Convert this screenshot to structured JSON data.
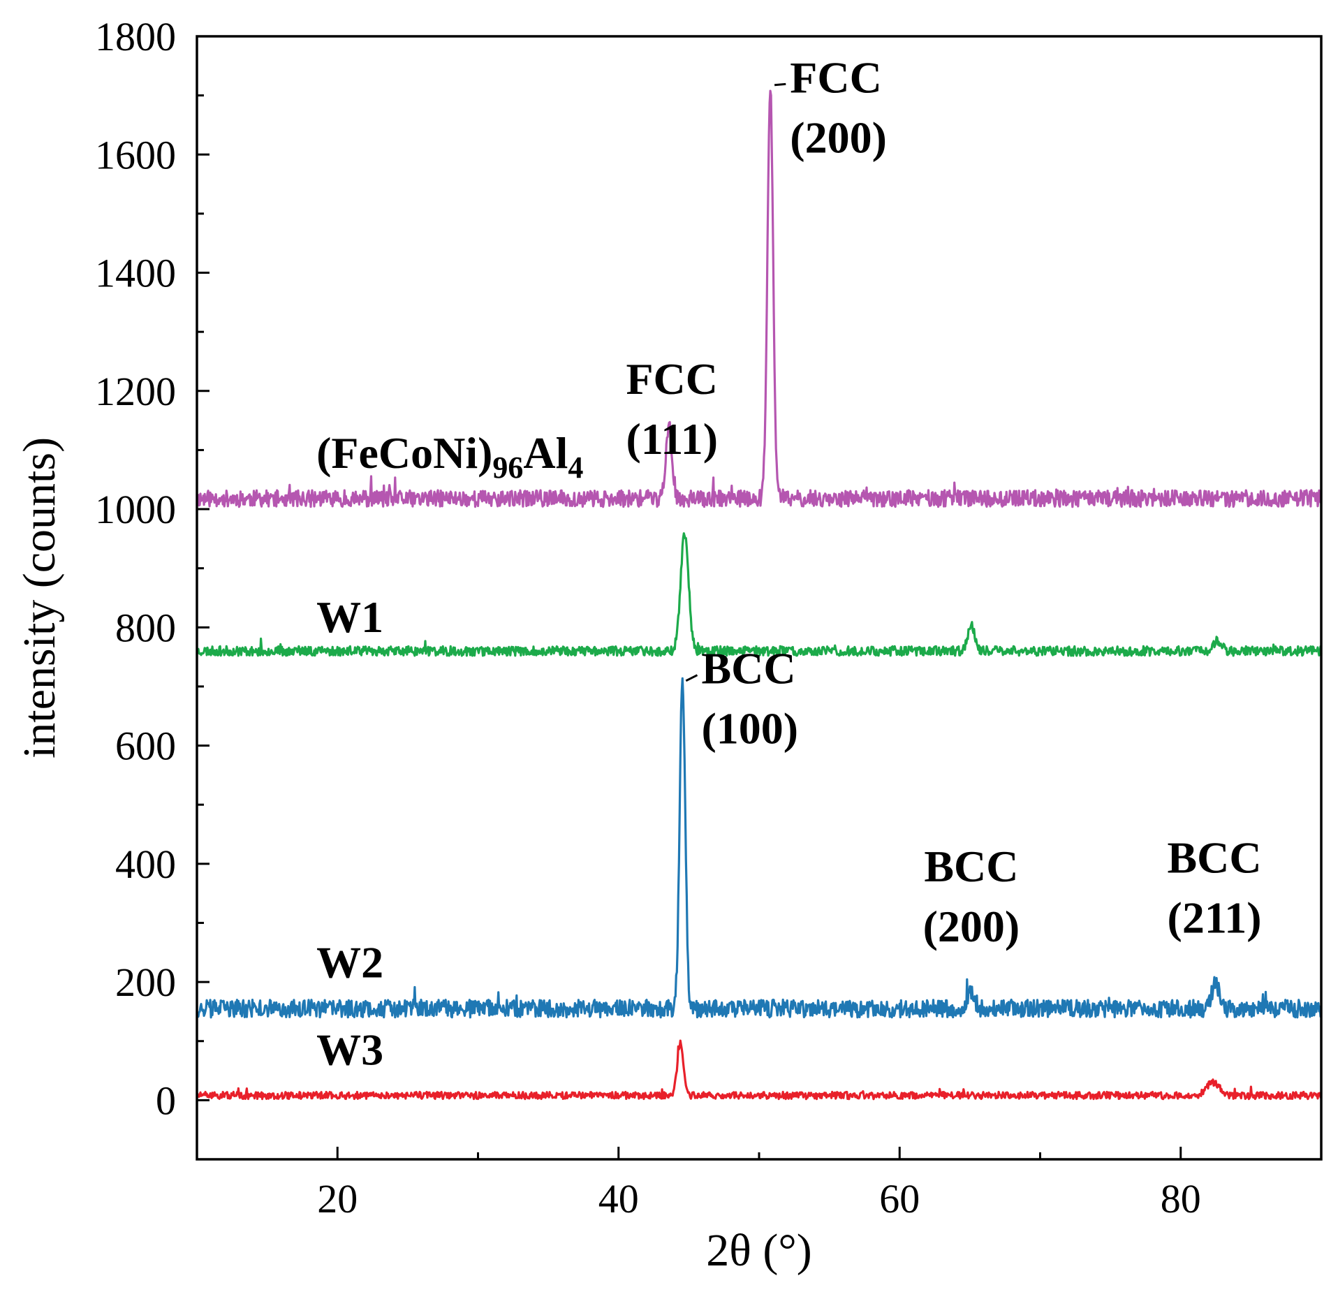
{
  "chart_data": {
    "type": "line",
    "xlabel": "2θ (°)",
    "ylabel": "intensity (counts)",
    "xlim": [
      10,
      90
    ],
    "ylim": [
      -100,
      1800
    ],
    "xticks": [
      20,
      40,
      60,
      80
    ],
    "xticks_minor": [
      30,
      50,
      70
    ],
    "yticks": [
      0,
      200,
      400,
      600,
      800,
      1000,
      1200,
      1400,
      1600,
      1800
    ],
    "yticks_minor": [
      -100,
      100,
      300,
      500,
      700,
      900,
      1100,
      1300,
      1500,
      1700
    ],
    "series": [
      {
        "name": "(FeCoNi)96Al4",
        "label_main": "(FeCoNi)",
        "label_sub1": "96",
        "label_mid": "Al",
        "label_sub2": "4",
        "color": "#b556b0",
        "baseline": 1018,
        "noise": 14,
        "seed": 11,
        "peaks": [
          {
            "x": 43.6,
            "height": 120,
            "width": 0.22
          },
          {
            "x": 50.8,
            "height": 695,
            "width": 0.2
          }
        ]
      },
      {
        "name": "W1",
        "color": "#1caa4a",
        "baseline": 760,
        "noise": 8,
        "seed": 23,
        "peaks": [
          {
            "x": 44.7,
            "height": 200,
            "width": 0.28
          },
          {
            "x": 65.1,
            "height": 42,
            "width": 0.25
          },
          {
            "x": 82.6,
            "height": 18,
            "width": 0.3
          }
        ]
      },
      {
        "name": "W2",
        "color": "#1f78b4",
        "baseline": 155,
        "noise": 15,
        "seed": 37,
        "peaks": [
          {
            "x": 44.55,
            "height": 555,
            "width": 0.2
          },
          {
            "x": 65.1,
            "height": 28,
            "width": 0.25
          },
          {
            "x": 82.5,
            "height": 42,
            "width": 0.28
          }
        ]
      },
      {
        "name": "W3",
        "color": "#e8202a",
        "baseline": 8,
        "noise": 6,
        "seed": 51,
        "peaks": [
          {
            "x": 44.4,
            "height": 88,
            "width": 0.22
          },
          {
            "x": 82.3,
            "height": 22,
            "width": 0.45
          }
        ]
      }
    ],
    "annotations": [
      {
        "line1": "FCC",
        "line2": "(111)",
        "x": 43.8,
        "y": 1195
      },
      {
        "line1": "FCC",
        "line2": "(200)",
        "x": 52.2,
        "y": 1705,
        "leader": true,
        "leader_x": 50.9,
        "leader_y": 1720
      },
      {
        "line1": "BCC",
        "line2": "(100)",
        "x": 45.9,
        "y": 705,
        "leader": true,
        "leader_x": 44.6,
        "leader_y": 712
      },
      {
        "line1": "BCC",
        "line2": "(200)",
        "x": 65.1,
        "y": 370
      },
      {
        "line1": "BCC",
        "line2": "(211)",
        "x": 82.4,
        "y": 385
      }
    ]
  }
}
